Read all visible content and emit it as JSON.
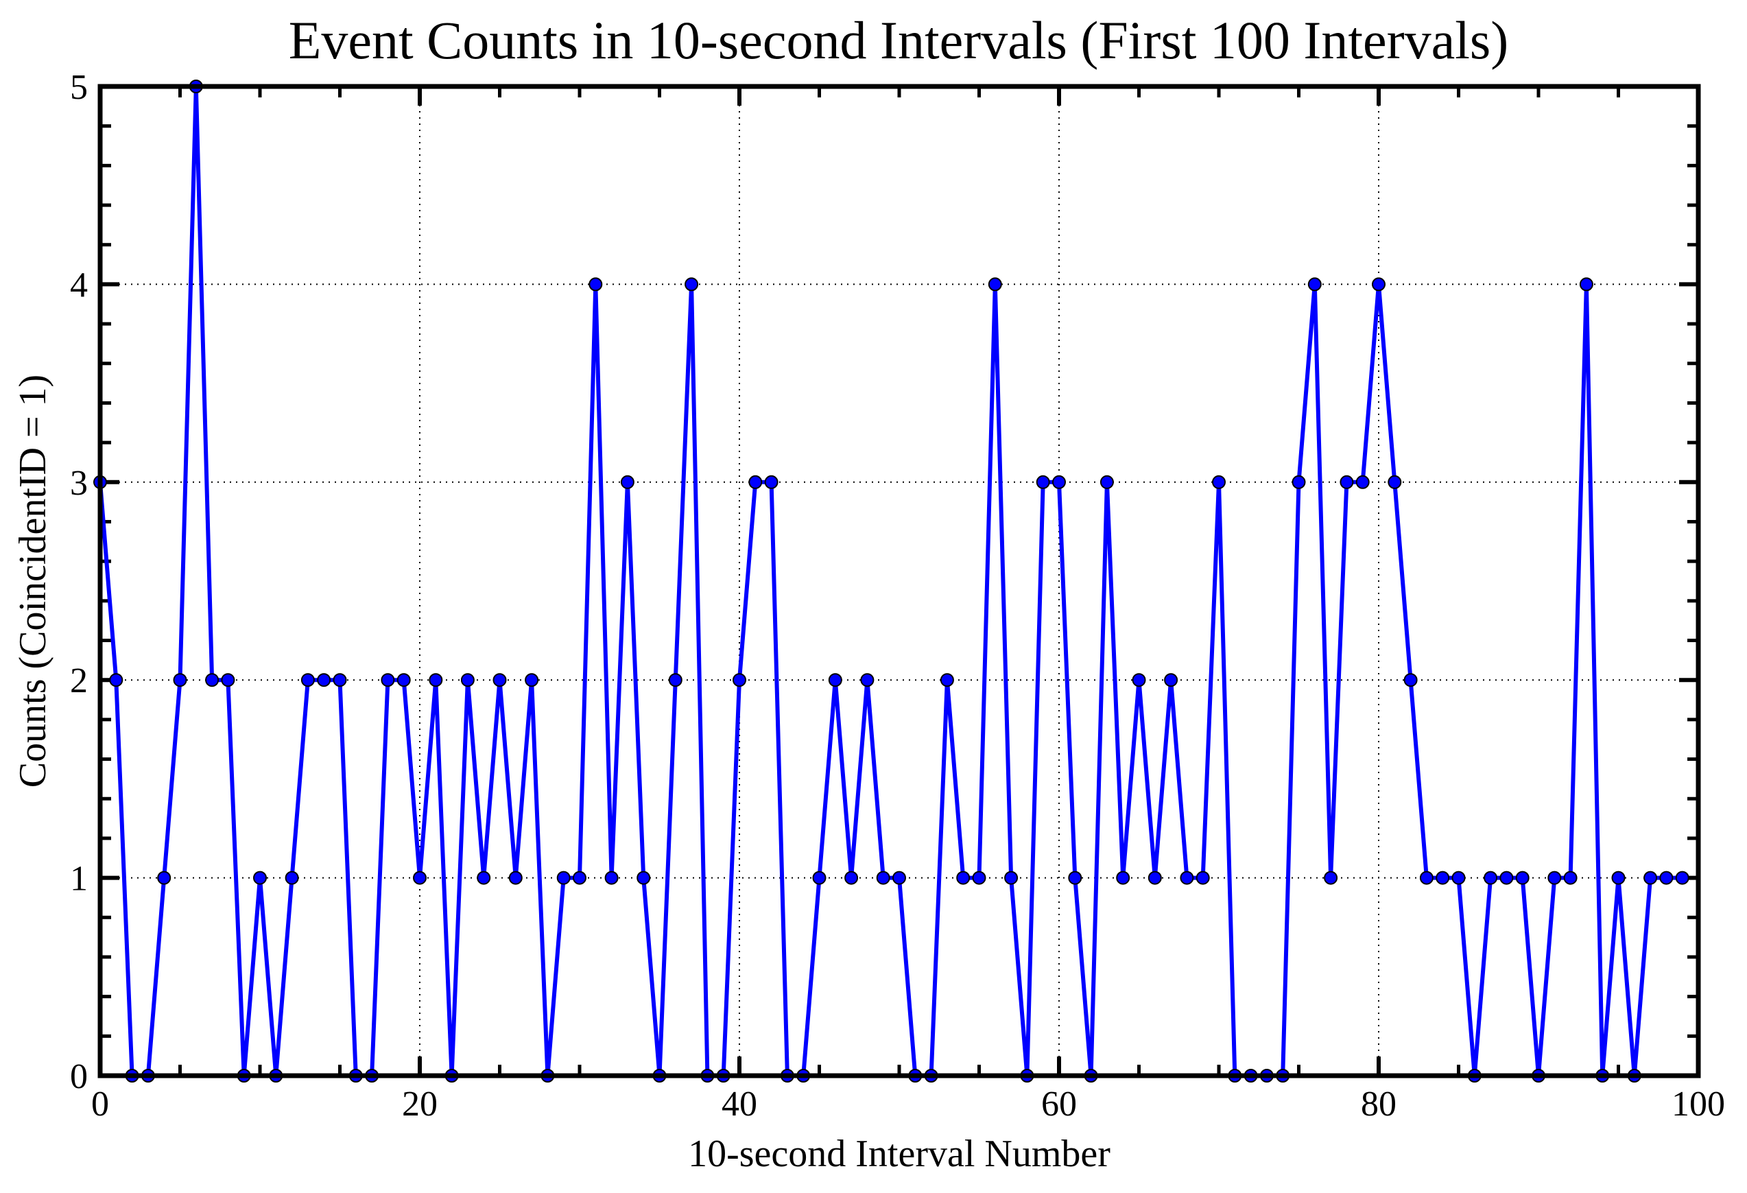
{
  "chart_data": {
    "type": "line",
    "title": "Event Counts in 10-second Intervals (First 100 Intervals)",
    "xlabel": "10-second Interval Number",
    "ylabel": "Counts (CoincidentID = 1)",
    "xlim": [
      0,
      100
    ],
    "ylim": [
      0,
      5
    ],
    "x_ticks": [
      0,
      20,
      40,
      60,
      80,
      100
    ],
    "y_ticks": [
      0,
      1,
      2,
      3,
      4,
      5
    ],
    "x_tick_labels": [
      "0",
      "20",
      "40",
      "60",
      "80",
      "100"
    ],
    "y_tick_labels": [
      "0",
      "1",
      "2",
      "3",
      "4",
      "5"
    ],
    "grid": true,
    "grid_style": "dotted",
    "series": [
      {
        "color": "#0000ff",
        "marker": "circle",
        "x": [
          0,
          1,
          2,
          3,
          4,
          5,
          6,
          7,
          8,
          9,
          10,
          11,
          12,
          13,
          14,
          15,
          16,
          17,
          18,
          19,
          20,
          21,
          22,
          23,
          24,
          25,
          26,
          27,
          28,
          29,
          30,
          31,
          32,
          33,
          34,
          35,
          36,
          37,
          38,
          39,
          40,
          41,
          42,
          43,
          44,
          45,
          46,
          47,
          48,
          49,
          50,
          51,
          52,
          53,
          54,
          55,
          56,
          57,
          58,
          59,
          60,
          61,
          62,
          63,
          64,
          65,
          66,
          67,
          68,
          69,
          70,
          71,
          72,
          73,
          74,
          75,
          76,
          77,
          78,
          79,
          80,
          81,
          82,
          83,
          84,
          85,
          86,
          87,
          88,
          89,
          90,
          91,
          92,
          93,
          94,
          95,
          96,
          97,
          98,
          99
        ],
        "values": [
          3,
          2,
          0,
          0,
          1,
          2,
          5,
          2,
          2,
          0,
          1,
          0,
          1,
          2,
          2,
          2,
          0,
          0,
          2,
          2,
          1,
          2,
          0,
          2,
          1,
          2,
          1,
          2,
          0,
          1,
          1,
          4,
          1,
          3,
          1,
          0,
          2,
          4,
          0,
          0,
          2,
          3,
          3,
          0,
          0,
          1,
          2,
          1,
          2,
          1,
          1,
          0,
          0,
          2,
          1,
          1,
          4,
          1,
          0,
          3,
          3,
          1,
          0,
          3,
          1,
          2,
          1,
          2,
          1,
          1,
          3,
          0,
          0,
          0,
          0,
          3,
          4,
          1,
          3,
          3,
          4,
          3,
          2,
          1,
          1,
          1,
          0,
          1,
          1,
          1,
          0,
          1,
          1,
          4,
          0,
          1,
          0,
          1,
          1,
          1
        ]
      }
    ]
  }
}
